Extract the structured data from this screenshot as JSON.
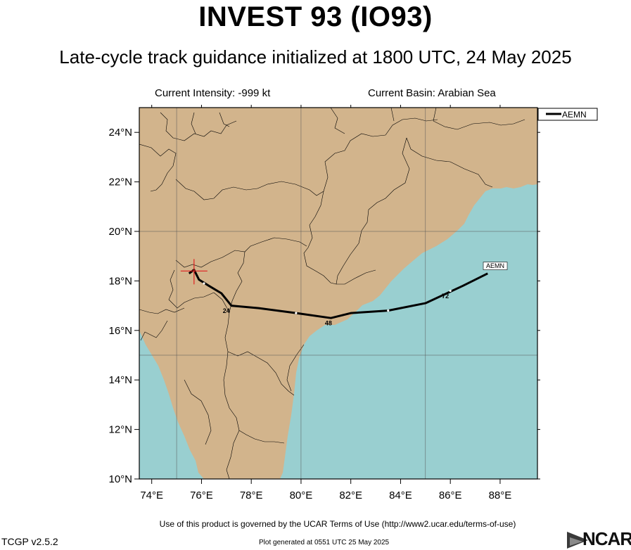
{
  "header": {
    "title": "INVEST 93 (IO93)",
    "subtitle": "Late-cycle track guidance initialized at 1800 UTC, 24 May 2025",
    "current_intensity": "Current Intensity: -999 kt",
    "current_basin": "Current Basin: Arabian Sea"
  },
  "colors": {
    "land": "#d2b48c",
    "ocean": "#99cfd0",
    "track": "#000000",
    "marker": "#e02020"
  },
  "map": {
    "lon_range": [
      73.5,
      89.5
    ],
    "lat_range": [
      10,
      25
    ],
    "lon_ticks": [
      "74°E",
      "76°E",
      "78°E",
      "80°E",
      "82°E",
      "84°E",
      "86°E",
      "88°E"
    ],
    "lat_ticks": [
      "10°N",
      "12°N",
      "14°N",
      "16°N",
      "18°N",
      "20°N",
      "22°N",
      "24°N"
    ],
    "legend_label": "AEMN",
    "current_position": {
      "lon": 75.7,
      "lat": 18.4
    },
    "track_model": "AEMN",
    "track": [
      [
        75.5,
        18.3
      ],
      [
        75.7,
        18.45
      ],
      [
        75.9,
        18.05
      ],
      [
        76.3,
        17.8
      ],
      [
        76.8,
        17.5
      ],
      [
        77.2,
        17.0
      ],
      [
        78.3,
        16.9
      ],
      [
        79.8,
        16.7
      ],
      [
        81.2,
        16.5
      ],
      [
        82.0,
        16.7
      ],
      [
        83.5,
        16.8
      ],
      [
        85.0,
        17.1
      ],
      [
        86.5,
        17.8
      ],
      [
        87.5,
        18.3
      ]
    ],
    "dots": [
      [
        76.1,
        17.9
      ],
      [
        79.8,
        16.7
      ],
      [
        83.5,
        16.8
      ],
      [
        86.0,
        17.6
      ]
    ],
    "hour_labels": [
      {
        "text": "24",
        "lon": 77.0,
        "lat": 16.9
      },
      {
        "text": "48",
        "lon": 81.1,
        "lat": 16.4
      },
      {
        "text": "72",
        "lon": 85.8,
        "lat": 17.5
      }
    ],
    "end_label": {
      "text": "AEMN",
      "lon": 87.55,
      "lat": 18.45
    }
  },
  "footer": {
    "terms": "Use of this product is governed by the UCAR Terms of Use (http://www2.ucar.edu/terms-of-use)",
    "version": "TCGP v2.5.2",
    "generated": "Plot generated at 0551 UTC   25 May 2025",
    "logo": "NCAR"
  }
}
